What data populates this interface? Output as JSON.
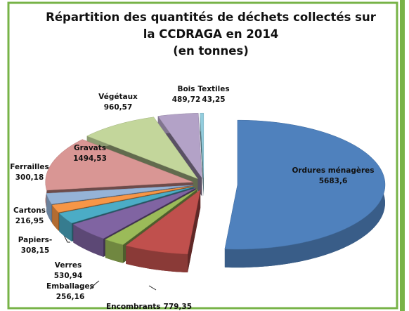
{
  "chart_data": {
    "type": "pie",
    "title": [
      "Répartition des quantités de déchets collectés sur",
      "la CCDRAGA en 2014",
      "(en tonnes)"
    ],
    "categories": [
      "Ordures ménagères",
      "Encombrants",
      "Emballages",
      "Verres",
      "Papiers-",
      "Cartons",
      "Ferrailles",
      "Gravats",
      "Végétaux",
      "Bois",
      "Textiles"
    ],
    "values": [
      5683.6,
      779.35,
      256.16,
      530.94,
      308.15,
      216.95,
      300.18,
      1494.53,
      960.57,
      489.72,
      43.25
    ],
    "value_labels": [
      "5683,6",
      "779,35",
      "256,16",
      "530,94",
      "308,15",
      "216,95",
      "300,18",
      "1494,53",
      "960,57",
      "489,72",
      "43,25"
    ],
    "colors": [
      "#4f81bd",
      "#c0504d",
      "#9bbb59",
      "#8064a2",
      "#4bacc6",
      "#f79646",
      "#95b3d7",
      "#d99694",
      "#c3d69b",
      "#b3a2c7",
      "#93cddd"
    ]
  }
}
